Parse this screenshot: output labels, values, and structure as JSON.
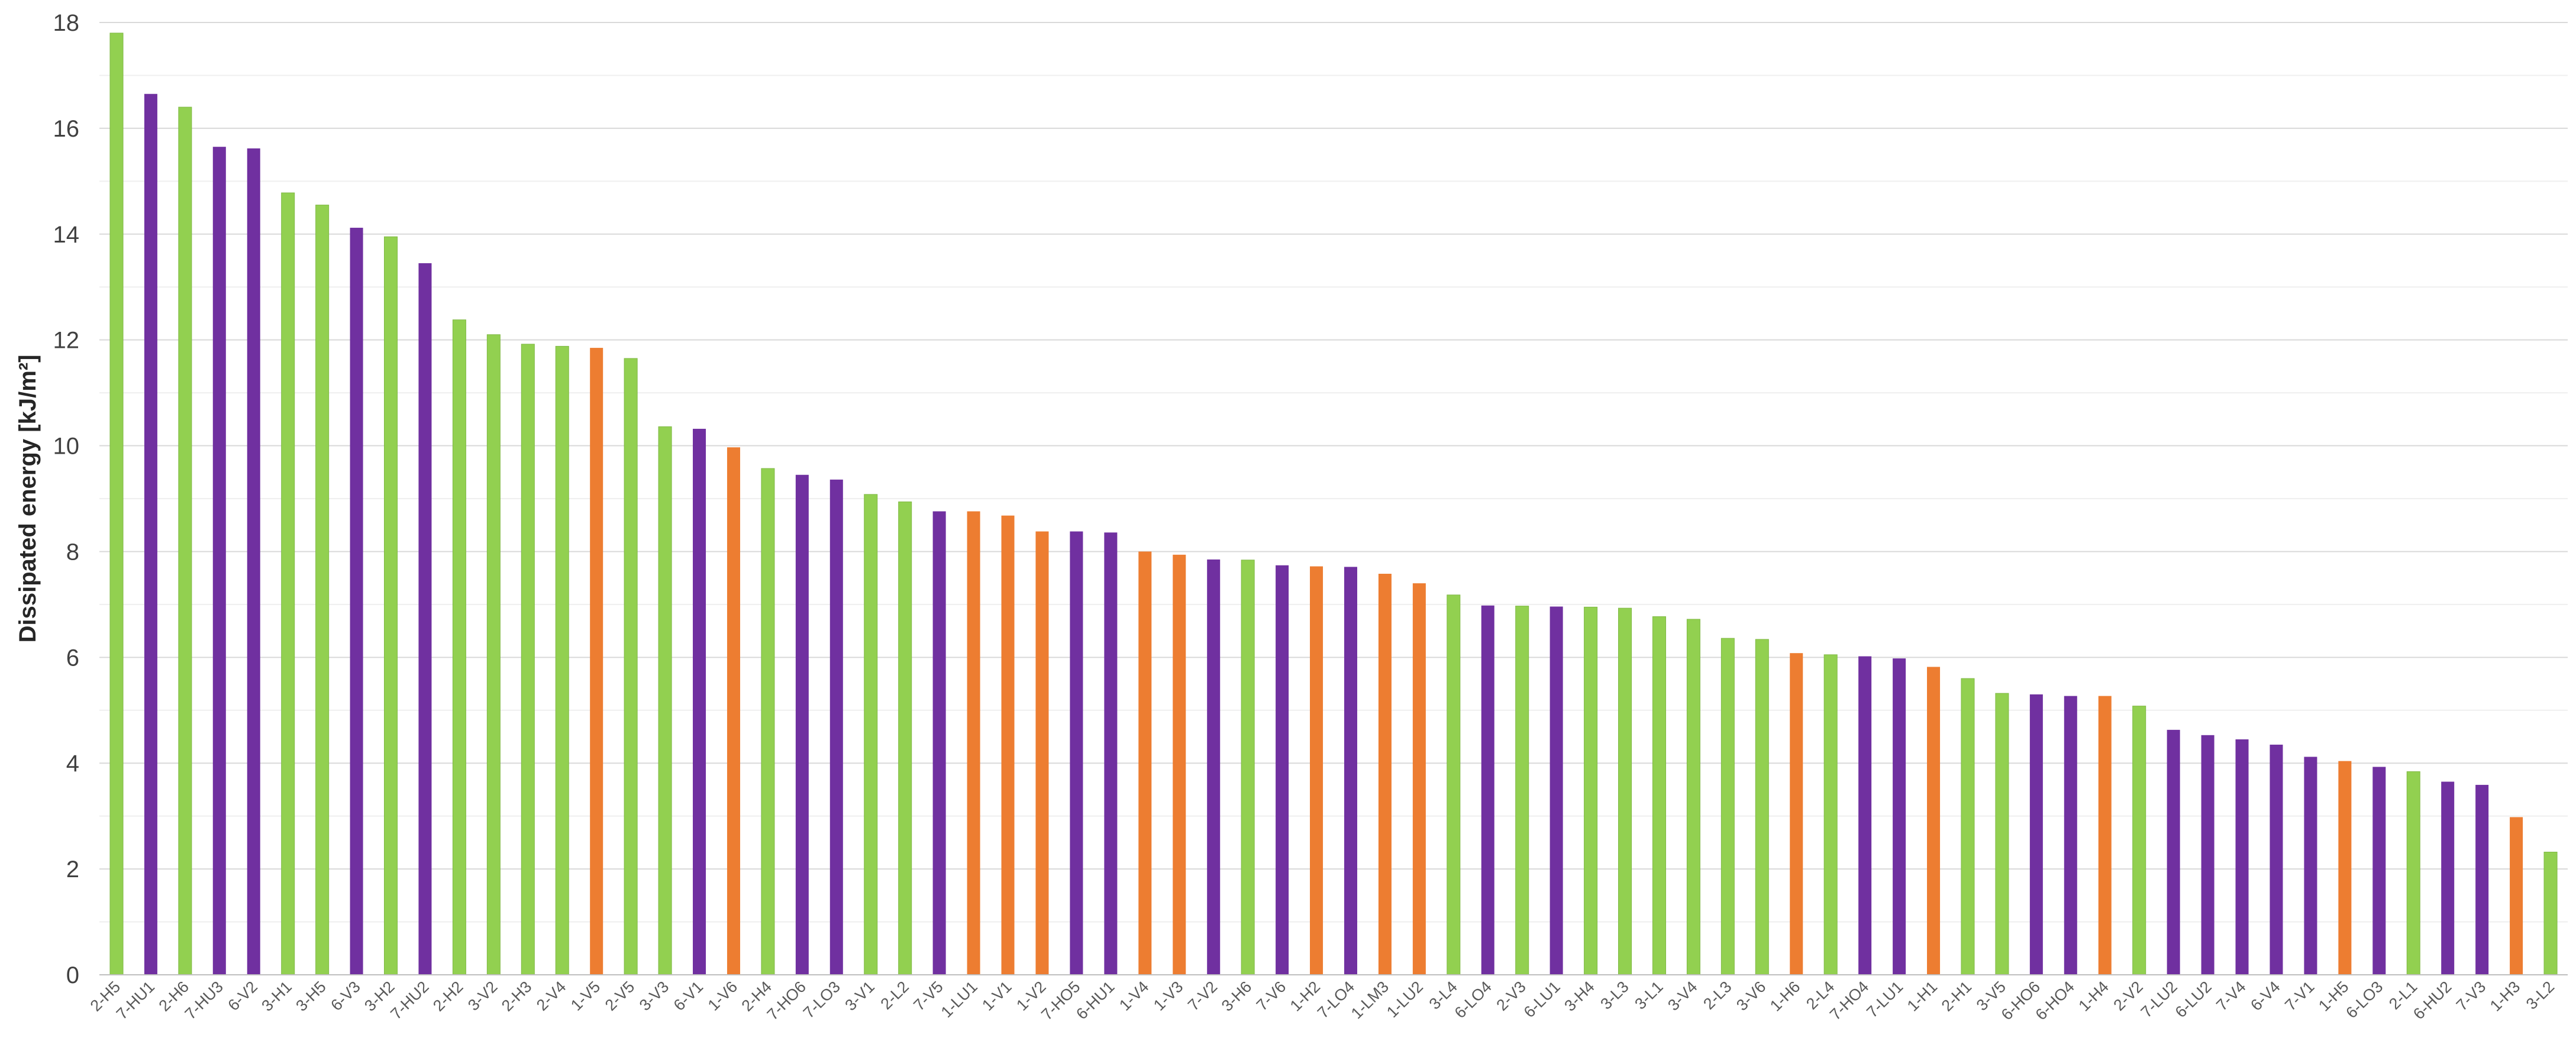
{
  "colors": {
    "green": "#92d050",
    "purple": "#7030a0",
    "orange": "#ed7d31"
  },
  "chart_data": {
    "type": "bar",
    "title": "",
    "xlabel": "",
    "ylabel": "Dissipated energy [kJ/m²]",
    "ylim": [
      0,
      18
    ],
    "yticks": [
      "0",
      "2",
      "4",
      "6",
      "8",
      "10",
      "12",
      "14",
      "16",
      "18"
    ],
    "grid": true,
    "legend": "none",
    "categories": [
      "2-H5",
      "7-HU1",
      "2-H6",
      "7-HU3",
      "6-V2",
      "3-H1",
      "3-H5",
      "6-V3",
      "3-H2",
      "7-HU2",
      "2-H2",
      "3-V2",
      "2-H3",
      "2-V4",
      "1-V5",
      "2-V5",
      "3-V3",
      "6-V1",
      "1-V6",
      "2-H4",
      "7-HO6",
      "7-LO3",
      "3-V1",
      "2-L2",
      "7-V5",
      "1-LU1",
      "1-V1",
      "1-V2",
      "7-HO5",
      "6-HU1",
      "1-V4",
      "1-V3",
      "7-V2",
      "3-H6",
      "7-V6",
      "1-H2",
      "7-LO4",
      "1-LM3",
      "1-LU2",
      "3-L4",
      "6-LO4",
      "2-V3",
      "6-LU1",
      "3-H4",
      "3-L3",
      "3-L1",
      "3-V4",
      "2-L3",
      "3-V6",
      "1-H6",
      "2-L4",
      "7-HO4",
      "7-LU1",
      "1-H1",
      "2-H1",
      "3-V5",
      "6-HO6",
      "6-HO4",
      "1-H4",
      "2-V2",
      "7-LU2",
      "6-LU2",
      "7-V4",
      "6-V4",
      "7-V1",
      "1-H5",
      "6-LO3",
      "2-L1",
      "6-HU2",
      "7-V3",
      "1-H3",
      "3-L2"
    ],
    "values": [
      17.8,
      16.65,
      16.4,
      15.65,
      15.62,
      14.78,
      14.55,
      14.12,
      13.95,
      13.45,
      12.38,
      12.1,
      11.92,
      11.88,
      11.85,
      11.65,
      10.36,
      10.32,
      9.97,
      9.57,
      9.45,
      9.36,
      9.08,
      8.94,
      8.76,
      8.76,
      8.68,
      8.38,
      8.38,
      8.36,
      8.0,
      7.94,
      7.85,
      7.84,
      7.74,
      7.72,
      7.71,
      7.58,
      7.4,
      7.18,
      6.98,
      6.97,
      6.96,
      6.95,
      6.93,
      6.77,
      6.72,
      6.36,
      6.34,
      6.08,
      6.05,
      6.02,
      5.98,
      5.82,
      5.6,
      5.32,
      5.3,
      5.27,
      5.27,
      5.08,
      4.63,
      4.53,
      4.45,
      4.35,
      4.12,
      4.04,
      3.93,
      3.84,
      3.65,
      3.59,
      2.98,
      2.32
    ],
    "bar_colors": [
      "green",
      "purple",
      "green",
      "purple",
      "purple",
      "green",
      "green",
      "purple",
      "green",
      "purple",
      "green",
      "green",
      "green",
      "green",
      "orange",
      "green",
      "green",
      "purple",
      "orange",
      "green",
      "purple",
      "purple",
      "green",
      "green",
      "purple",
      "orange",
      "orange",
      "orange",
      "purple",
      "purple",
      "orange",
      "orange",
      "purple",
      "green",
      "purple",
      "orange",
      "purple",
      "orange",
      "orange",
      "green",
      "purple",
      "green",
      "purple",
      "green",
      "green",
      "green",
      "green",
      "green",
      "green",
      "orange",
      "green",
      "purple",
      "purple",
      "orange",
      "green",
      "green",
      "purple",
      "purple",
      "orange",
      "green",
      "purple",
      "purple",
      "purple",
      "purple",
      "purple",
      "orange",
      "purple",
      "green",
      "purple",
      "purple",
      "orange",
      "green"
    ]
  }
}
